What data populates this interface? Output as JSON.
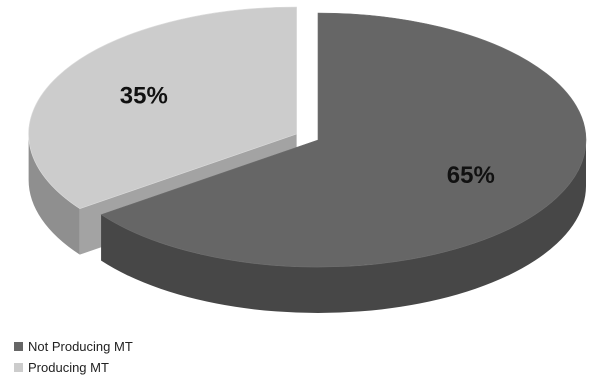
{
  "chart_data": {
    "type": "pie",
    "title": "",
    "series": [
      {
        "name": "Not Producing MT",
        "value": 65,
        "label": "65%",
        "color": "#666666"
      },
      {
        "name": "Producing MT",
        "value": 35,
        "label": "35%",
        "color": "#cccccc"
      }
    ],
    "style": "3d-exploded",
    "legend_position": "bottom-left"
  },
  "legend": {
    "items": [
      {
        "label": "Not Producing MT",
        "color": "#666666"
      },
      {
        "label": "Producing MT",
        "color": "#cccccc"
      }
    ]
  }
}
